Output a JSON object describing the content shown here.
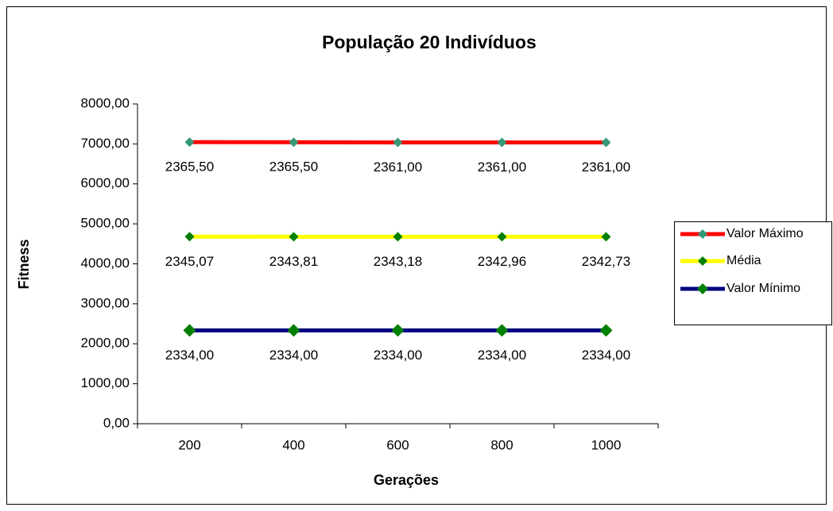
{
  "chart_data": {
    "type": "line",
    "stacked": true,
    "title": "População 20 Indivíduos",
    "x_label": "Gerações",
    "y_label": "Fitness",
    "categories": [
      "200",
      "400",
      "600",
      "800",
      "1000"
    ],
    "series": [
      {
        "name": "Valor Máximo",
        "color": "#ff0000",
        "marker_color": "#339977",
        "values": [
          2365.5,
          2365.5,
          2361,
          2361,
          2361
        ],
        "value_labels": [
          "2365,50",
          "2365,50",
          "2361,00",
          "2361,00",
          "2361,00"
        ]
      },
      {
        "name": "Média",
        "color": "#ffff00",
        "marker_color": "#008000",
        "values": [
          2345.07,
          2343.81,
          2343.18,
          2342.96,
          2342.73
        ],
        "value_labels": [
          "2345,07",
          "2343,81",
          "2343,18",
          "2342,96",
          "2342,73"
        ]
      },
      {
        "name": "Valor Mínimo",
        "color": "#000080",
        "marker_color": "#008000",
        "values": [
          2334,
          2334,
          2334,
          2334,
          2334
        ],
        "value_labels": [
          "2334,00",
          "2334,00",
          "2334,00",
          "2334,00",
          "2334,00"
        ]
      }
    ],
    "ylim": [
      0,
      8000
    ],
    "yticks": [
      {
        "value": 0,
        "label": "0,00"
      },
      {
        "value": 1000,
        "label": "1000,00"
      },
      {
        "value": 2000,
        "label": "2000,00"
      },
      {
        "value": 3000,
        "label": "3000,00"
      },
      {
        "value": 4000,
        "label": "4000,00"
      },
      {
        "value": 5000,
        "label": "5000,00"
      },
      {
        "value": 6000,
        "label": "6000,00"
      },
      {
        "value": 7000,
        "label": "7000,00"
      },
      {
        "value": 8000,
        "label": "8000,00"
      }
    ],
    "grid": false,
    "legend": "right"
  }
}
